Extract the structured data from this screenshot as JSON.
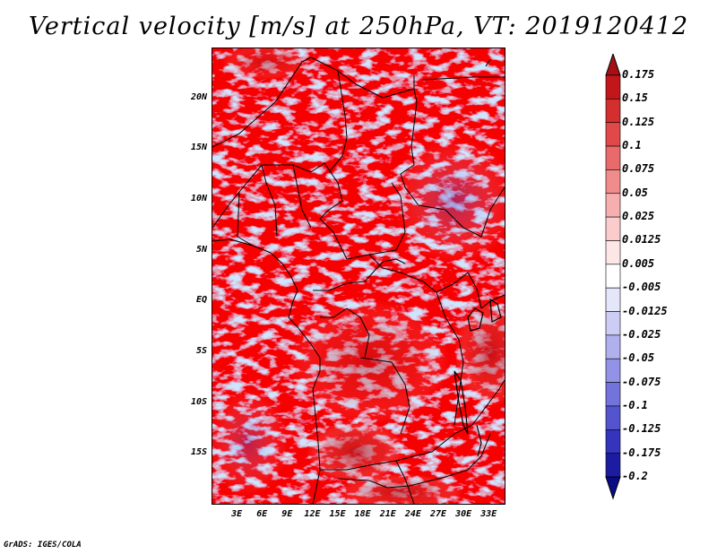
{
  "title": "Vertical velocity [m/s] at 250hPa, VT: 2019120412",
  "footer": "GrADS: IGES/COLA",
  "map": {
    "variable": "Vertical velocity",
    "units": "m/s",
    "level": "250hPa",
    "valid_time": "2019120412",
    "lat_labels": [
      "20N",
      "15N",
      "10N",
      "5N",
      "EQ",
      "5S",
      "10S",
      "15S"
    ],
    "lat_values": [
      20,
      15,
      10,
      5,
      0,
      -5,
      -10,
      -15
    ],
    "lat_range": [
      -20,
      25
    ],
    "lon_labels": [
      "3E",
      "6E",
      "9E",
      "12E",
      "15E",
      "18E",
      "21E",
      "24E",
      "27E",
      "30E",
      "33E"
    ],
    "lon_values": [
      3,
      6,
      9,
      12,
      15,
      18,
      21,
      24,
      27,
      30,
      33
    ],
    "lon_range": [
      0,
      35
    ]
  },
  "colorbar": {
    "labels": [
      "0.175",
      "0.15",
      "0.125",
      "0.1",
      "0.075",
      "0.05",
      "0.025",
      "0.0125",
      "0.005",
      "-0.005",
      "-0.0125",
      "-0.025",
      "-0.05",
      "-0.075",
      "-0.1",
      "-0.125",
      "-0.175",
      "-0.2"
    ],
    "colors": [
      "#a50f15",
      "#c2161b",
      "#d32f2f",
      "#e0484a",
      "#e96a6a",
      "#f08c8c",
      "#f6aeae",
      "#facccc",
      "#fde6e6",
      "#ffffff",
      "#e6e6fb",
      "#ccccf5",
      "#b0b0ee",
      "#9292e6",
      "#7373dc",
      "#5454cf",
      "#3434bd",
      "#1c1ca3",
      "#0b0b85"
    ]
  }
}
